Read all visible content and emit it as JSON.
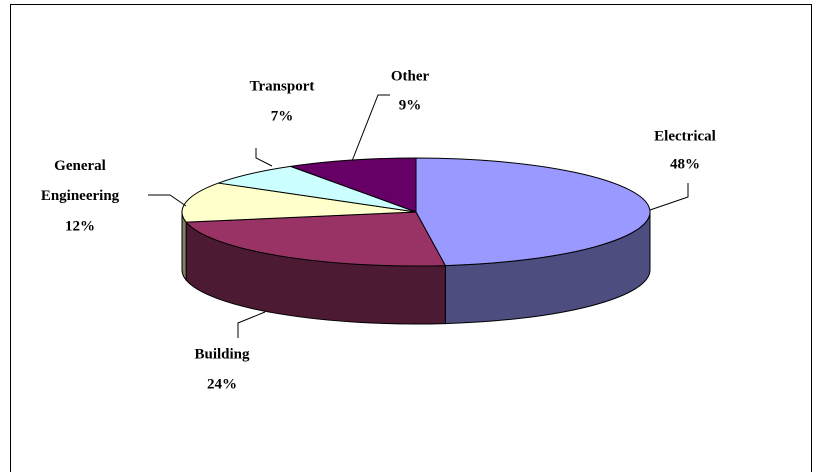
{
  "chart_data": {
    "type": "pie",
    "categories": [
      "Electrical",
      "Building",
      "General Engineering",
      "Transport",
      "Other"
    ],
    "values": [
      48,
      24,
      12,
      7,
      9
    ],
    "value_labels": [
      "48%",
      "24%",
      "12%",
      "7%",
      "9%"
    ],
    "colors": [
      "#9999ff",
      "#993366",
      "#ffffcc",
      "#ccffff",
      "#660066"
    ]
  }
}
